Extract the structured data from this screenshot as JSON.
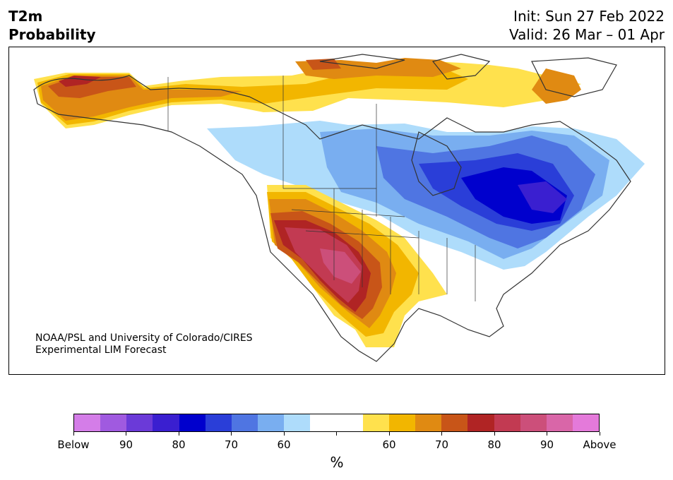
{
  "title": {
    "line1": "T2m",
    "line2": "Probability"
  },
  "info": {
    "init": "Init: Sun 27 Feb 2022",
    "valid": "Valid: 26 Mar – 01 Apr"
  },
  "credit": {
    "line1": "NOAA/PSL and University of Colorado/CIRES",
    "line2": "Experimental LIM Forecast"
  },
  "colorbar": {
    "unit": "%",
    "colors": [
      "#d47de8",
      "#a05ae0",
      "#6b3ad8",
      "#3a1fd0",
      "#0000cd",
      "#2a3ed8",
      "#4f75e2",
      "#79aef0",
      "#aedcfb",
      "#ffffff",
      "#ffffff",
      "#ffe14d",
      "#f2b600",
      "#e08a12",
      "#c85518",
      "#b02424",
      "#c23a52",
      "#cc4f7a",
      "#d966a8",
      "#e47ada"
    ],
    "tick_labels": [
      "Below",
      "90",
      "80",
      "70",
      "60",
      "",
      "60",
      "70",
      "80",
      "90",
      "Above"
    ]
  }
}
